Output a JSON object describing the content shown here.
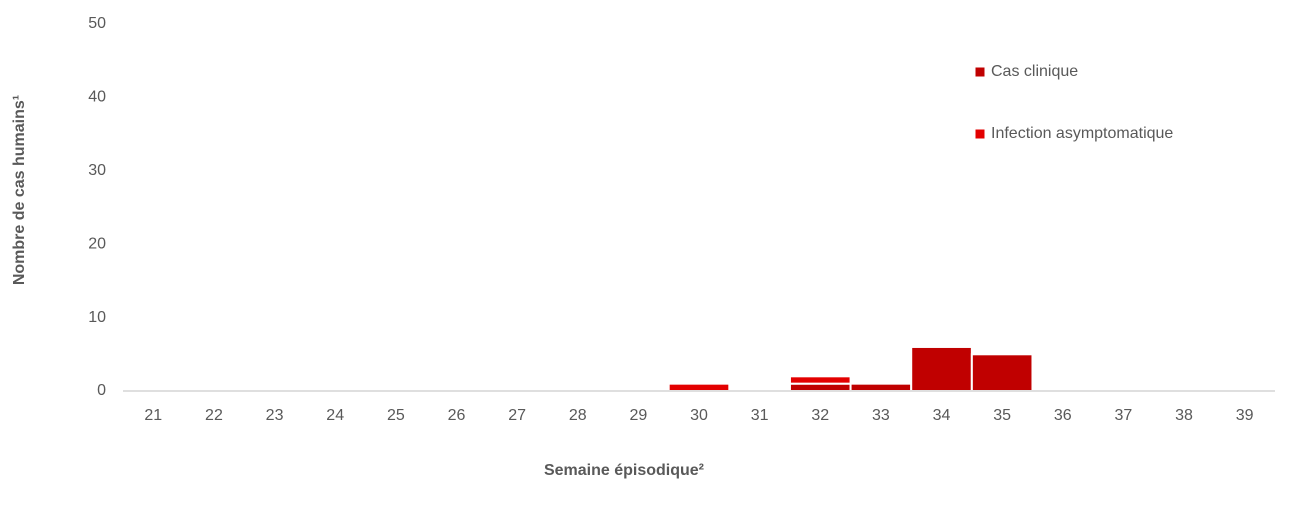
{
  "chart_data": {
    "type": "stacked_bar",
    "x_label": "Semaine épisodique²",
    "y_label": "Nombre de cas humains¹",
    "categories": [
      "21",
      "22",
      "23",
      "24",
      "25",
      "26",
      "27",
      "28",
      "29",
      "30",
      "31",
      "32",
      "33",
      "34",
      "35",
      "36",
      "37",
      "38",
      "39"
    ],
    "series": [
      {
        "name": "Cas clinique",
        "color": "#C00000",
        "values": [
          0,
          0,
          0,
          0,
          0,
          0,
          0,
          0,
          0,
          0,
          0,
          1,
          1,
          6,
          5,
          0,
          0,
          0,
          0
        ]
      },
      {
        "name": "Infection asymptomatique",
        "color": "#E30000",
        "values": [
          0,
          0,
          0,
          0,
          0,
          0,
          0,
          0,
          0,
          1,
          0,
          1,
          0,
          0,
          0,
          0,
          0,
          0,
          0
        ]
      }
    ],
    "ylim": [
      0,
      50
    ],
    "yticks": [
      0,
      10,
      20,
      30,
      40,
      50
    ],
    "grid": false,
    "legend": "top-right"
  }
}
